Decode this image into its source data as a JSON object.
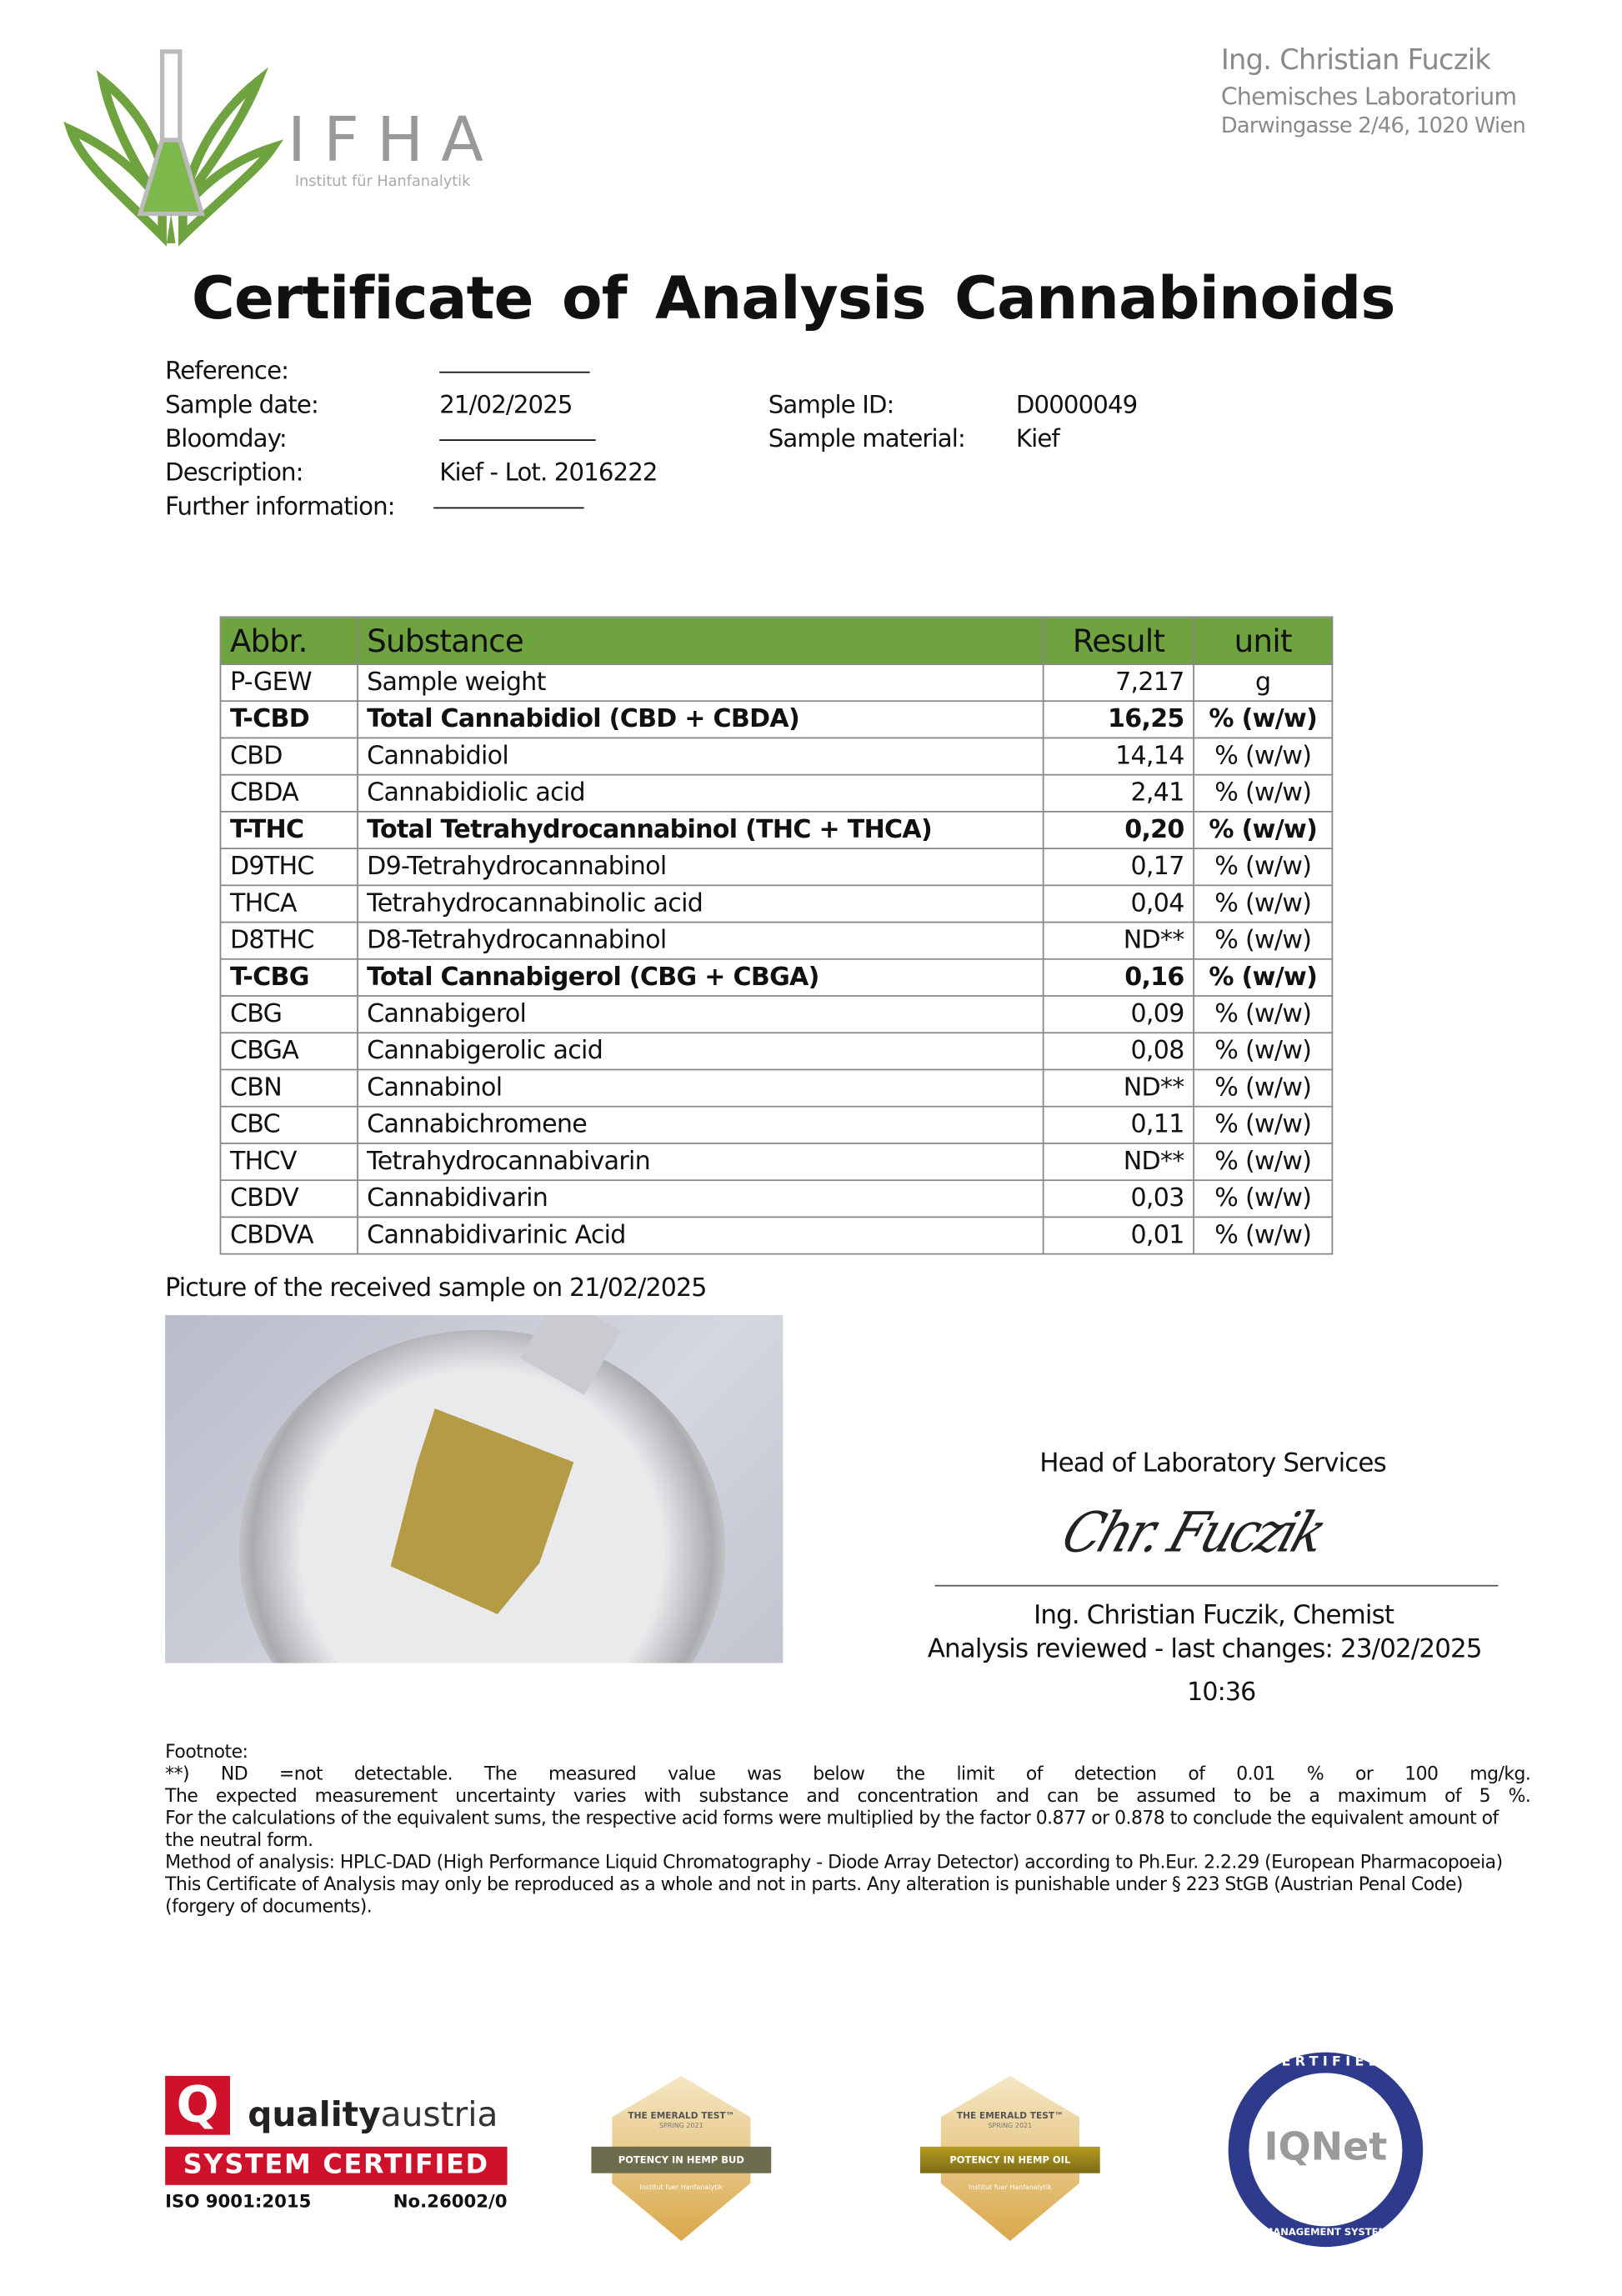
{
  "logo": {
    "text": "IFHA",
    "subtitle": "Institut für Hanfanalytik"
  },
  "header": {
    "name": "Ing. Christian Fuczik",
    "lab": "Chemisches Laboratorium",
    "address": "Darwingasse 2/46, 1020 Wien"
  },
  "title": "Certificate of Analysis Cannabinoids",
  "info": {
    "reference_label": "Reference:",
    "sample_date_label": "Sample date:",
    "sample_date": "21/02/2025",
    "bloomday_label": "Bloomday:",
    "description_label": "Description:",
    "description": "Kief - Lot. 2016222",
    "further_label": "Further information:",
    "sample_id_label": "Sample ID:",
    "sample_id": "D0000049",
    "material_label": "Sample material:",
    "material": "Kief"
  },
  "table": {
    "headers": [
      "Abbr.",
      "Substance",
      "Result",
      "unit"
    ],
    "rows": [
      {
        "abbr": "P-GEW",
        "substance": "Sample weight",
        "result": "7,217",
        "unit": "g",
        "bold": false
      },
      {
        "abbr": "T-CBD",
        "substance": "Total Cannabidiol (CBD + CBDA)",
        "result": "16,25",
        "unit": "% (w/w)",
        "bold": true
      },
      {
        "abbr": "CBD",
        "substance": "Cannabidiol",
        "result": "14,14",
        "unit": "% (w/w)",
        "bold": false
      },
      {
        "abbr": "CBDA",
        "substance": "Cannabidiolic acid",
        "result": "2,41",
        "unit": "% (w/w)",
        "bold": false
      },
      {
        "abbr": "T-THC",
        "substance": "Total Tetrahydrocannabinol (THC + THCA)",
        "result": "0,20",
        "unit": "% (w/w)",
        "bold": true
      },
      {
        "abbr": "D9THC",
        "substance": "D9-Tetrahydrocannabinol",
        "result": "0,17",
        "unit": "% (w/w)",
        "bold": false
      },
      {
        "abbr": "THCA",
        "substance": "Tetrahydrocannabinolic acid",
        "result": "0,04",
        "unit": "% (w/w)",
        "bold": false
      },
      {
        "abbr": "D8THC",
        "substance": "D8-Tetrahydrocannabinol",
        "result": "ND**",
        "unit": "% (w/w)",
        "bold": false
      },
      {
        "abbr": "T-CBG",
        "substance": "Total Cannabigerol (CBG + CBGA)",
        "result": "0,16",
        "unit": "% (w/w)",
        "bold": true
      },
      {
        "abbr": "CBG",
        "substance": "Cannabigerol",
        "result": "0,09",
        "unit": "% (w/w)",
        "bold": false
      },
      {
        "abbr": "CBGA",
        "substance": "Cannabigerolic acid",
        "result": "0,08",
        "unit": "% (w/w)",
        "bold": false
      },
      {
        "abbr": "CBN",
        "substance": "Cannabinol",
        "result": "ND**",
        "unit": "% (w/w)",
        "bold": false
      },
      {
        "abbr": "CBC",
        "substance": "Cannabichromene",
        "result": "0,11",
        "unit": "% (w/w)",
        "bold": false
      },
      {
        "abbr": "THCV",
        "substance": "Tetrahydrocannabivarin",
        "result": "ND**",
        "unit": "% (w/w)",
        "bold": false
      },
      {
        "abbr": "CBDV",
        "substance": "Cannabidivarin",
        "result": "0,03",
        "unit": "% (w/w)",
        "bold": false
      },
      {
        "abbr": "CBDVA",
        "substance": "Cannabidivarinic Acid",
        "result": "0,01",
        "unit": "% (w/w)",
        "bold": false
      }
    ],
    "header_color": "#6ea33f"
  },
  "picture_caption": "Picture of the received sample on 21/02/2025",
  "signature": {
    "role": "Head of Laboratory Services",
    "signed_name": "Ing. Christian Fuczik, Chemist",
    "reviewed": "Analysis reviewed - last changes: 23/02/2025",
    "time": "10:36",
    "handwriting": "Chr. Fuczik"
  },
  "footnote": {
    "label": "Footnote:",
    "line1": "**) ND =not detectable. The measured value was below the limit of detection of 0.01 % or 100 mg/kg.",
    "line2": "The expected measurement uncertainty varies with substance and concentration and can be assumed to be a maximum of 5 %.",
    "line3": "For the calculations of the equivalent sums, the respective acid forms were multiplied by the factor 0.877 or 0.878 to conclude the equivalent amount of the neutral form.",
    "line4": "Method of analysis: HPLC-DAD (High Performance Liquid Chromatography - Diode Array Detector) according to Ph.Eur. 2.2.29 (European Pharmacopoeia)",
    "line5": "This Certificate of Analysis may only be reproduced as a whole and not in parts. Any alteration is punishable under § 223 StGB (Austrian Penal Code) (forgery of documents)."
  },
  "badges": {
    "qa": {
      "brand_a": "quality",
      "brand_b": "austria",
      "banner": "SYSTEM CERTIFIED",
      "iso": "ISO 9001:2015",
      "number": "No.26002/0"
    },
    "emerald1": {
      "title": "THE EMERALD TEST™",
      "season": "SPRING 2021",
      "band": "POTENCY IN HEMP BUD",
      "org": "Institut fuer Hanfanalytik"
    },
    "emerald2": {
      "title": "THE EMERALD TEST™",
      "season": "SPRING 2021",
      "band": "POTENCY IN HEMP OIL",
      "org": "Institut fuer Hanfanalytik"
    },
    "iqnet": {
      "top": "CERTIFIED",
      "logo": "IQNet",
      "bottom": "MANAGEMENT SYSTEM"
    }
  }
}
